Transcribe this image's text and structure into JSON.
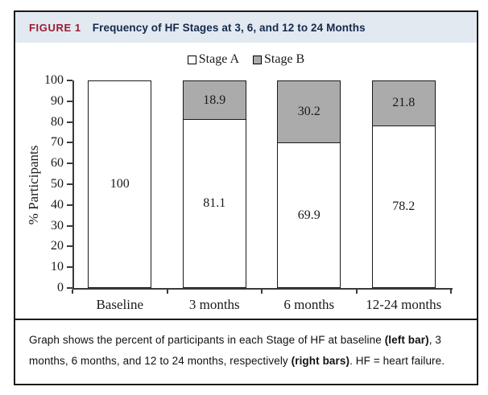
{
  "header": {
    "tag": "FIGURE 1",
    "title": "Frequency of HF Stages at 3, 6, and 12 to 24 Months"
  },
  "chart_data": {
    "type": "bar",
    "stacked": true,
    "title": "Frequency of HF Stages at 3, 6, and 12 to 24 Months",
    "categories": [
      "Baseline",
      "3 months",
      "6 months",
      "12-24 months"
    ],
    "series": [
      {
        "name": "Stage A",
        "color": "#ffffff",
        "values": [
          100,
          81.1,
          69.9,
          78.2
        ],
        "labels": [
          "100",
          "81.1",
          "69.9",
          "78.2"
        ]
      },
      {
        "name": "Stage B",
        "color": "#ababab",
        "values": [
          0,
          18.9,
          30.2,
          21.8
        ],
        "labels": [
          "",
          "18.9",
          "30.2",
          "21.8"
        ]
      }
    ],
    "xlabel": "",
    "ylabel": "% Participants",
    "ylim": [
      0,
      100
    ],
    "ytick_step": 10,
    "legend_position": "top",
    "grid": false,
    "bar_value_labels_shown": true
  },
  "caption": {
    "lines": [
      [
        {
          "text": "Graph shows the percent of participants in each Stage of HF at baseline ",
          "bold": false
        },
        {
          "text": "(left bar)",
          "bold": true
        },
        {
          "text": ", 3",
          "bold": false
        }
      ],
      [
        {
          "text": "months, 6 months, and 12 to 24 months, respectively ",
          "bold": false
        },
        {
          "text": "(right bars)",
          "bold": true
        },
        {
          "text": ". HF = heart failure.",
          "bold": false
        }
      ]
    ]
  },
  "colors": {
    "header_bg": "#e2e9f1",
    "figure_tag": "#9b1c31",
    "header_title": "#14294b",
    "box_border": "#1a1a1a",
    "stage_a_fill": "#ffffff",
    "stage_b_fill": "#ababab",
    "axis": "#3a3a3a"
  }
}
